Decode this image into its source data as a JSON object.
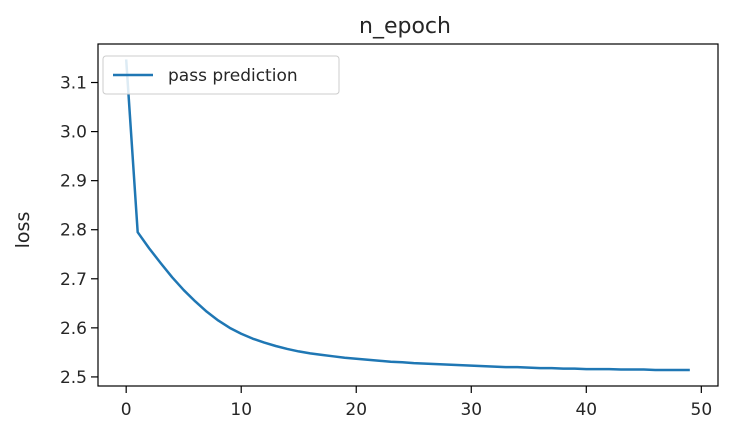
{
  "chart_data": {
    "type": "line",
    "title": "n_epoch",
    "xlabel": "",
    "ylabel": "loss",
    "xlim": [
      -2.45,
      51.45
    ],
    "ylim": [
      2.4815,
      3.1785
    ],
    "xticks": [
      0,
      10,
      20,
      30,
      40,
      50
    ],
    "yticks": [
      2.5,
      2.6,
      2.7,
      2.8,
      2.9,
      3.0,
      3.1
    ],
    "ytick_labels": [
      "2.5",
      "2.6",
      "2.7",
      "2.8",
      "2.9",
      "3.0",
      "3.1"
    ],
    "grid": false,
    "legend_position": "upper left",
    "series": [
      {
        "name": "pass prediction",
        "color": "#1f77b4",
        "x": [
          0,
          1,
          2,
          3,
          4,
          5,
          6,
          7,
          8,
          9,
          10,
          11,
          12,
          13,
          14,
          15,
          16,
          17,
          18,
          19,
          20,
          21,
          22,
          23,
          24,
          25,
          26,
          27,
          28,
          29,
          30,
          31,
          32,
          33,
          34,
          35,
          36,
          37,
          38,
          39,
          40,
          41,
          42,
          43,
          44,
          45,
          46,
          47,
          48,
          49
        ],
        "y": [
          3.147,
          2.795,
          2.762,
          2.732,
          2.703,
          2.677,
          2.654,
          2.633,
          2.615,
          2.6,
          2.588,
          2.578,
          2.57,
          2.563,
          2.557,
          2.552,
          2.548,
          2.545,
          2.542,
          2.539,
          2.537,
          2.535,
          2.533,
          2.531,
          2.53,
          2.528,
          2.527,
          2.526,
          2.525,
          2.524,
          2.523,
          2.522,
          2.521,
          2.52,
          2.52,
          2.519,
          2.518,
          2.518,
          2.517,
          2.517,
          2.516,
          2.516,
          2.516,
          2.515,
          2.515,
          2.515,
          2.514,
          2.514,
          2.514,
          2.514
        ]
      }
    ]
  }
}
